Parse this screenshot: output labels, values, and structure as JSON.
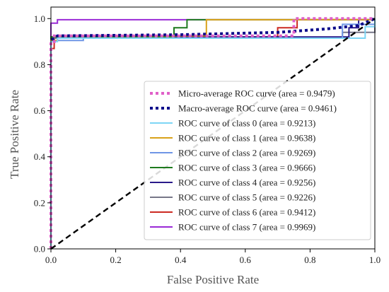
{
  "chart_data": {
    "type": "line",
    "title": "",
    "xlabel": "False Positive Rate",
    "ylabel": "True Positive Rate",
    "xlim": [
      0.0,
      1.0
    ],
    "ylim": [
      0.0,
      1.05
    ],
    "xticks": [
      "0.0",
      "0.2",
      "0.4",
      "0.6",
      "0.8",
      "1.0"
    ],
    "yticks": [
      "0.0",
      "0.2",
      "0.4",
      "0.6",
      "0.8",
      "1.0"
    ],
    "grid": false,
    "legend_position": "lower-right",
    "reference_line": {
      "x": [
        0,
        1
      ],
      "y": [
        0,
        1
      ],
      "color": "#000000",
      "style": "dashed"
    },
    "series": [
      {
        "name": "Micro-average ROC curve (area = 0.9479)",
        "color": "#e060c8",
        "style": "dotted",
        "x": [
          0,
          0,
          0.01,
          0.01,
          0.75,
          0.75,
          1.0
        ],
        "y": [
          0,
          0.9,
          0.9,
          0.925,
          0.925,
          1.0,
          1.0
        ]
      },
      {
        "name": "Macro-average ROC curve (area = 0.9461)",
        "color": "#0a0a8a",
        "style": "dotted",
        "x": [
          0,
          0,
          0.02,
          0.4,
          0.7,
          0.85,
          0.95,
          1.0
        ],
        "y": [
          0,
          0.905,
          0.925,
          0.93,
          0.94,
          0.955,
          0.97,
          1.0
        ]
      },
      {
        "name": "ROC curve of class 0 (area = 0.9213)",
        "color": "#7dd6f5",
        "style": "solid",
        "x": [
          0,
          0,
          0.02,
          0.02,
          0.97,
          0.97,
          1.0,
          1.0
        ],
        "y": [
          0,
          0.9,
          0.9,
          0.915,
          0.915,
          0.965,
          0.965,
          1.0
        ]
      },
      {
        "name": "ROC curve of class 1 (area = 0.9638)",
        "color": "#d9a21a",
        "style": "solid",
        "x": [
          0,
          0,
          0.02,
          0.02,
          0.48,
          0.48,
          1.0
        ],
        "y": [
          0,
          0.905,
          0.905,
          0.925,
          0.925,
          0.995,
          0.995
        ]
      },
      {
        "name": "ROC curve of class 2 (area = 0.9269)",
        "color": "#6f96e6",
        "style": "solid",
        "x": [
          0,
          0,
          0.1,
          0.1,
          0.9,
          0.9,
          1.0
        ],
        "y": [
          0,
          0.905,
          0.905,
          0.915,
          0.915,
          0.975,
          0.975
        ]
      },
      {
        "name": "ROC curve of class 3 (area = 0.9666)",
        "color": "#1e7a1e",
        "style": "solid",
        "x": [
          0,
          0,
          0.38,
          0.38,
          0.42,
          0.42,
          1.0
        ],
        "y": [
          0,
          0.92,
          0.92,
          0.96,
          0.96,
          0.995,
          0.995
        ]
      },
      {
        "name": "ROC curve of class 4 (area = 0.9256)",
        "color": "#2a1a8a",
        "style": "solid",
        "x": [
          0,
          0,
          0.92,
          0.92,
          0.95,
          0.95,
          1.0
        ],
        "y": [
          0,
          0.92,
          0.92,
          0.96,
          0.96,
          0.995,
          0.995
        ]
      },
      {
        "name": "ROC curve of class 5 (area = 0.9226)",
        "color": "#777788",
        "style": "solid",
        "x": [
          0,
          0,
          0.9,
          0.9,
          1.0,
          1.0
        ],
        "y": [
          0,
          0.915,
          0.915,
          0.94,
          0.94,
          1.0
        ]
      },
      {
        "name": "ROC curve of class 6 (area = 0.9412)",
        "color": "#cc2a22",
        "style": "solid",
        "x": [
          0,
          0,
          0.01,
          0.01,
          0.7,
          0.7,
          0.76,
          0.76,
          1.0
        ],
        "y": [
          0,
          0.87,
          0.87,
          0.92,
          0.92,
          0.96,
          0.96,
          0.995,
          0.995
        ]
      },
      {
        "name": "ROC curve of class 7 (area = 0.9969)",
        "color": "#9a2ad6",
        "style": "solid",
        "x": [
          0,
          0,
          0.02,
          0.02,
          1.0
        ],
        "y": [
          0,
          0.98,
          0.98,
          0.995,
          0.995
        ]
      }
    ]
  }
}
